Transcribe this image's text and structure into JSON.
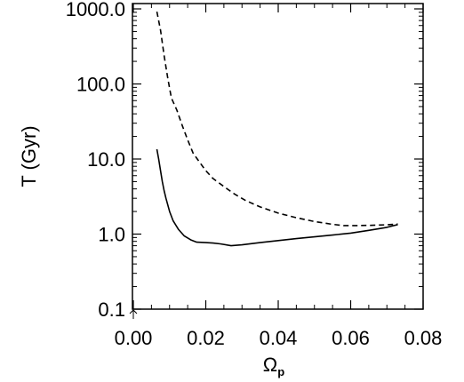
{
  "chart_data": {
    "type": "line",
    "xlabel": "Ω",
    "xlabel_sub": "p",
    "ylabel": "T (Gyr)",
    "xlim": [
      0.0,
      0.08
    ],
    "ylim": [
      0.1,
      1000.0
    ],
    "y_scale": "log",
    "grid": false,
    "x_ticks": [
      {
        "value": 0.0,
        "label": "0.00"
      },
      {
        "value": 0.02,
        "label": "0.02"
      },
      {
        "value": 0.04,
        "label": "0.04"
      },
      {
        "value": 0.06,
        "label": "0.06"
      },
      {
        "value": 0.08,
        "label": "0.08"
      }
    ],
    "y_ticks": [
      {
        "value": 0.1,
        "label": "0.1"
      },
      {
        "value": 1.0,
        "label": "1.0"
      },
      {
        "value": 10.0,
        "label": "10.0"
      },
      {
        "value": 100.0,
        "label": "100.0"
      },
      {
        "value": 1000.0,
        "label": "1000.0"
      }
    ],
    "series": [
      {
        "style": "dashed",
        "color": "#000000",
        "x": [
          0.0065,
          0.0075,
          0.0085,
          0.0095,
          0.0105,
          0.012,
          0.0135,
          0.015,
          0.0165,
          0.018,
          0.02,
          0.022,
          0.025,
          0.028,
          0.031,
          0.035,
          0.04,
          0.045,
          0.05,
          0.055,
          0.058,
          0.062,
          0.066,
          0.07,
          0.073
        ],
        "y": [
          920,
          520,
          240,
          120,
          65,
          45,
          28,
          18,
          12,
          9.5,
          7.0,
          5.5,
          4.3,
          3.4,
          2.8,
          2.3,
          1.9,
          1.65,
          1.47,
          1.35,
          1.3,
          1.3,
          1.31,
          1.33,
          1.36
        ]
      },
      {
        "style": "solid",
        "color": "#000000",
        "x": [
          0.0065,
          0.007,
          0.0075,
          0.008,
          0.0085,
          0.009,
          0.01,
          0.011,
          0.0125,
          0.014,
          0.016,
          0.0175,
          0.02,
          0.022,
          0.024,
          0.027,
          0.03,
          0.035,
          0.04,
          0.045,
          0.05,
          0.055,
          0.06,
          0.065,
          0.07,
          0.073
        ],
        "y": [
          13.5,
          10,
          7,
          5,
          3.8,
          3.0,
          2.0,
          1.5,
          1.15,
          0.95,
          0.83,
          0.78,
          0.77,
          0.76,
          0.74,
          0.7,
          0.72,
          0.77,
          0.82,
          0.87,
          0.92,
          0.97,
          1.03,
          1.12,
          1.23,
          1.34
        ]
      }
    ]
  }
}
